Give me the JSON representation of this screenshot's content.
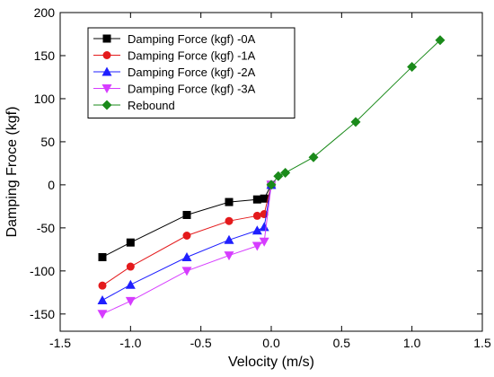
{
  "chart_data": {
    "type": "line",
    "xlabel": "Velocity (m/s)",
    "ylabel": "Damping Froce (kgf)",
    "xlim": [
      -1.5,
      1.5
    ],
    "ylim": [
      -170,
      200
    ],
    "xticks": [
      -1.5,
      -1.0,
      -0.5,
      0.0,
      0.5,
      1.0,
      1.5
    ],
    "xtick_labels": [
      "-1.5",
      "-1.0",
      "-0.5",
      "0.0",
      "0.5",
      "1.0",
      "1.5"
    ],
    "yticks": [
      -150,
      -100,
      -50,
      0,
      50,
      100,
      150,
      200
    ],
    "ytick_labels": [
      "-150",
      "-100",
      "-50",
      "0",
      "50",
      "100",
      "150",
      "200"
    ],
    "grid": false,
    "legend_position": "top-left",
    "series": [
      {
        "name": "Damping Force (kgf) -0A",
        "color": "#000000",
        "marker": "square",
        "x": [
          -1.2,
          -1.0,
          -0.6,
          -0.3,
          -0.1,
          -0.05,
          0.0
        ],
        "y": [
          -84,
          -67,
          -35,
          -20,
          -17,
          -16,
          0
        ]
      },
      {
        "name": "Damping Force (kgf) -1A",
        "color": "#e41a1c",
        "marker": "circle",
        "x": [
          -1.2,
          -1.0,
          -0.6,
          -0.3,
          -0.1,
          -0.05,
          0.0
        ],
        "y": [
          -117,
          -95,
          -59,
          -42,
          -36,
          -34,
          0
        ]
      },
      {
        "name": "Damping Force (kgf) -2A",
        "color": "#1f1fff",
        "marker": "triangle-up",
        "x": [
          -1.2,
          -1.0,
          -0.6,
          -0.3,
          -0.1,
          -0.05,
          0.0
        ],
        "y": [
          -134,
          -116,
          -84,
          -64,
          -53,
          -49,
          0
        ]
      },
      {
        "name": "Damping Force (kgf) -3A",
        "color": "#d63cff",
        "marker": "triangle-down",
        "x": [
          -1.2,
          -1.0,
          -0.6,
          -0.3,
          -0.1,
          -0.05,
          0.0
        ],
        "y": [
          -150,
          -135,
          -100,
          -82,
          -71,
          -66,
          0
        ]
      },
      {
        "name": "Rebound",
        "color": "#1a8a1a",
        "marker": "diamond",
        "x": [
          0.0,
          0.05,
          0.1,
          0.3,
          0.6,
          1.0,
          1.2
        ],
        "y": [
          0,
          10,
          14,
          32,
          73,
          137,
          168
        ]
      }
    ]
  }
}
